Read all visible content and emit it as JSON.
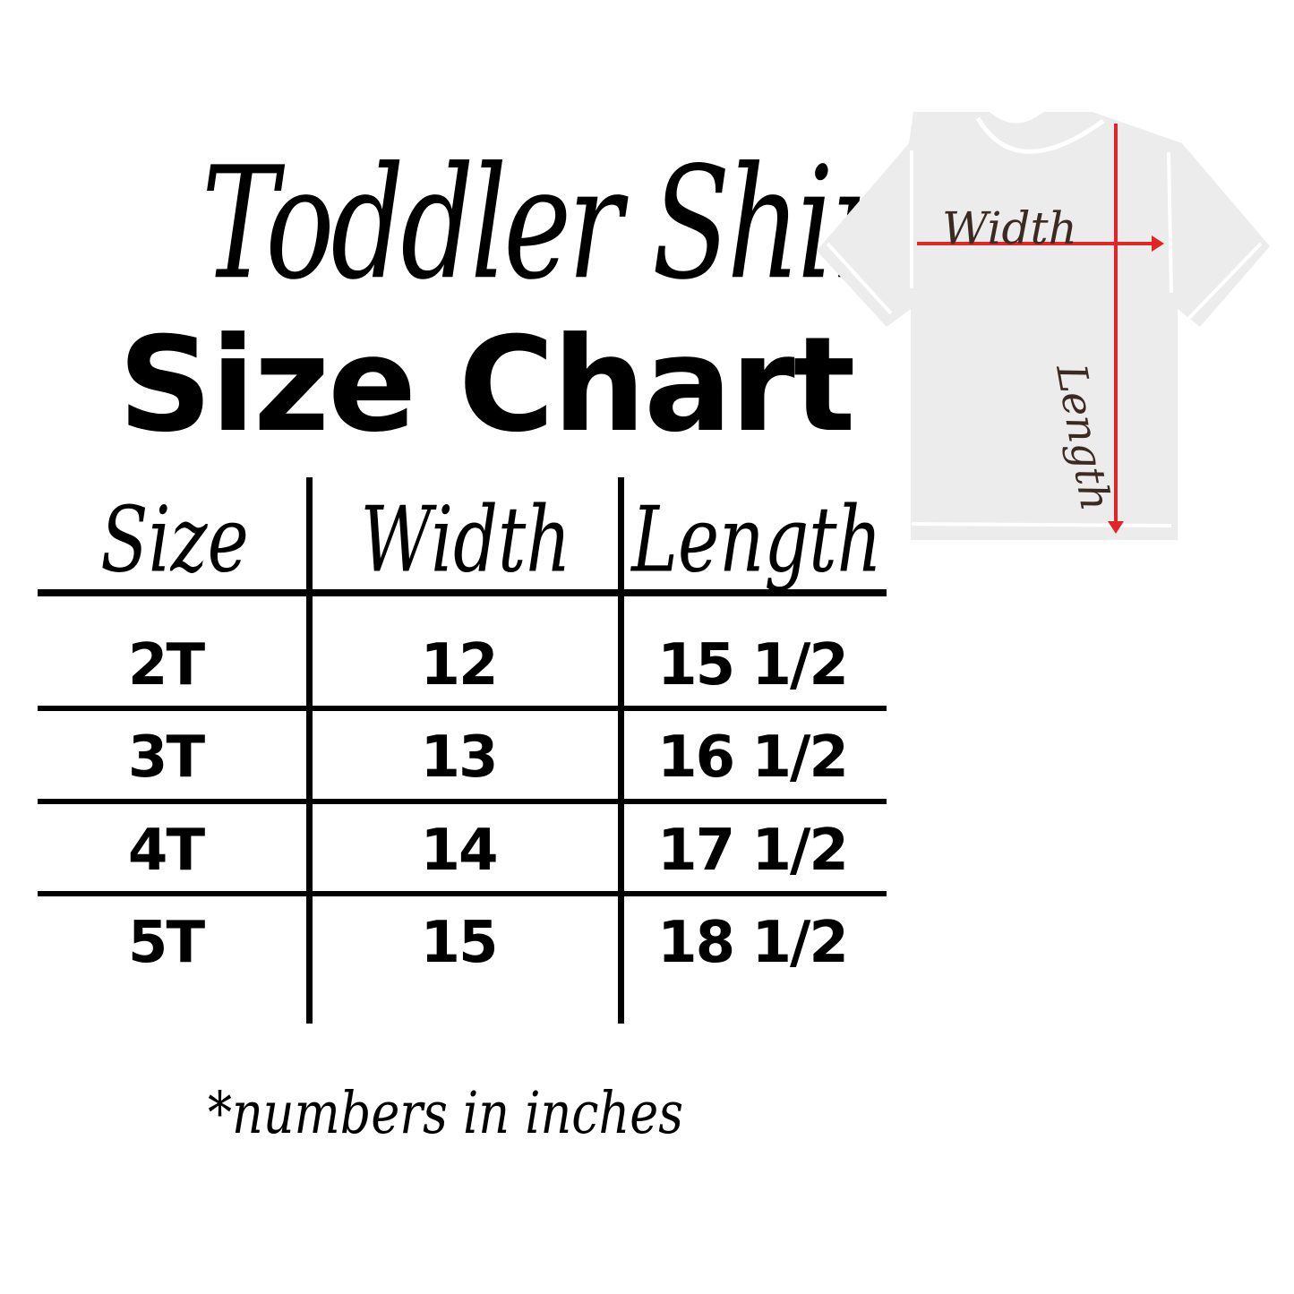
{
  "title_script": "Toddler Shirt",
  "title_bold": "Size Chart",
  "table": {
    "headers": [
      "Size",
      "Width",
      "Length"
    ],
    "rows": [
      [
        "2T",
        "12",
        "15 1/2"
      ],
      [
        "3T",
        "13",
        "16 1/2"
      ],
      [
        "4T",
        "14",
        "17 1/2"
      ],
      [
        "5T",
        "15",
        "18 1/2"
      ]
    ]
  },
  "footnote": "*numbers in inches",
  "diagram": {
    "width_label": "Width",
    "length_label": "Length",
    "shirt_color": "#ececec",
    "arrow_color": "#e32526",
    "label_color": "#3a2a22"
  }
}
